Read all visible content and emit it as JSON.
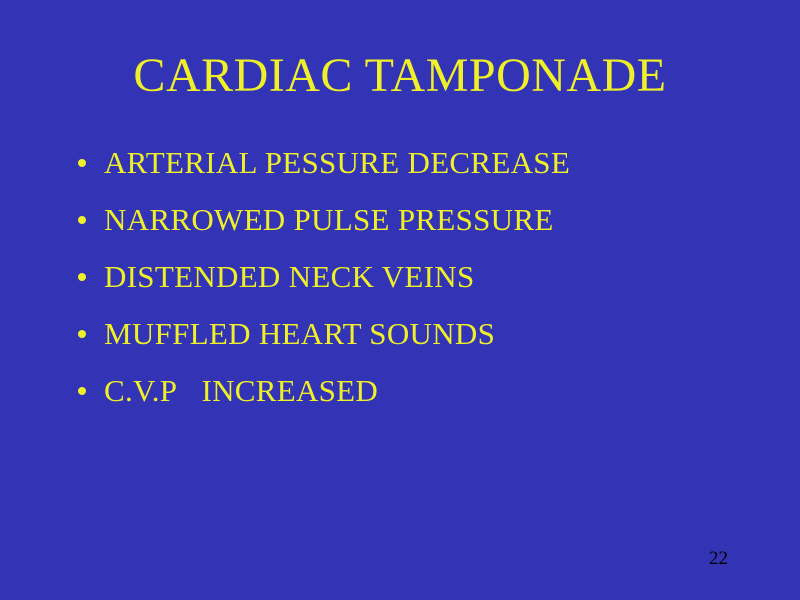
{
  "slide": {
    "background_color": "#3333b5",
    "text_color": "#f0f029",
    "title": "CARDIAC TAMPONADE",
    "title_fontsize": 48,
    "bullet_fontsize": 31,
    "bullets": [
      "ARTERIAL PESSURE DECREASE",
      "NARROWED PULSE PRESSURE",
      "DISTENDED NECK VEINS",
      "MUFFLED HEART SOUNDS",
      "C.V.P   INCREASED"
    ],
    "page_number": "22",
    "page_number_color": "#000000",
    "page_number_fontsize": 19
  }
}
